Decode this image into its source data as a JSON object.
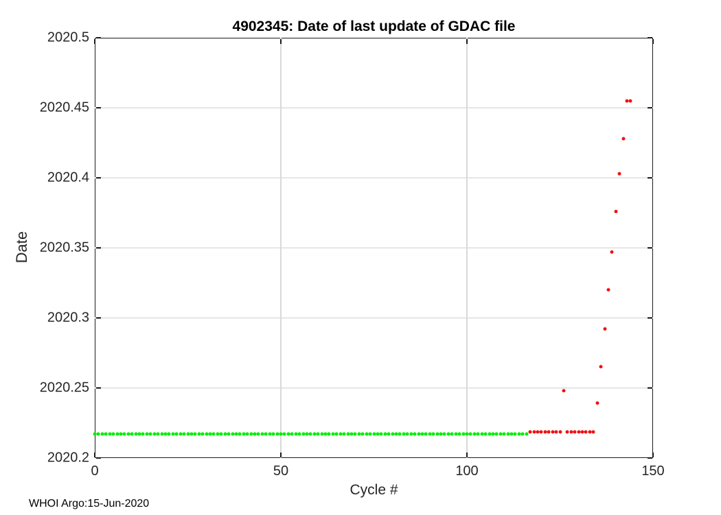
{
  "chart_data": {
    "type": "scatter",
    "title": "4902345: Date of last update of GDAC file",
    "xlabel": "Cycle #",
    "ylabel": "Date",
    "xlim": [
      0,
      150
    ],
    "ylim": [
      2020.2,
      2020.5
    ],
    "xtick_values": [
      0,
      50,
      100,
      150
    ],
    "xtick_labels": [
      "0",
      "50",
      "100",
      "150"
    ],
    "ytick_values": [
      2020.2,
      2020.25,
      2020.3,
      2020.35,
      2020.4,
      2020.45,
      2020.5
    ],
    "ytick_labels": [
      "2020.2",
      "2020.25",
      "2020.3",
      "2020.35",
      "2020.4",
      "2020.45",
      "2020.5"
    ],
    "grid": "on",
    "legend_position": "none",
    "colors": {
      "axis": "#1a1a1a",
      "tick_label": "#262626",
      "grid_horizontal": "#e6e6e6",
      "grid_vertical": "#d9d9d9",
      "background": "#ffffff",
      "green_marker": "#00ee00",
      "red_marker": "#f21111"
    },
    "series": [
      {
        "name": "green-dots",
        "marker": "dot",
        "color": "#00ee00",
        "runs": [
          {
            "cycle_start": 0,
            "cycle_end": 116,
            "value": 2020.217
          }
        ],
        "points": []
      },
      {
        "name": "red-dots",
        "marker": "dot",
        "color": "#f21111",
        "runs": [
          {
            "cycle_start": 117,
            "cycle_end": 125,
            "value": 2020.2185
          },
          {
            "cycle_start": 127,
            "cycle_end": 134,
            "value": 2020.2185
          }
        ],
        "points": [
          [
            126,
            2020.248
          ],
          [
            135,
            2020.239
          ],
          [
            136,
            2020.265
          ],
          [
            137,
            2020.292
          ],
          [
            138,
            2020.32
          ],
          [
            139,
            2020.347
          ],
          [
            140,
            2020.376
          ],
          [
            141,
            2020.403
          ],
          [
            142,
            2020.428
          ],
          [
            143,
            2020.455
          ],
          [
            144,
            2020.455
          ]
        ]
      }
    ]
  },
  "footer": {
    "text": "WHOI Argo:15-Jun-2020"
  }
}
